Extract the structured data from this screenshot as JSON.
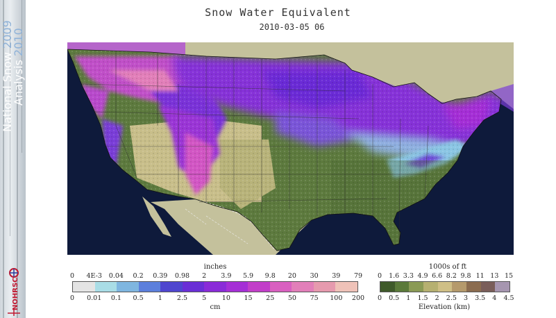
{
  "banner": {
    "line1": "National Snow",
    "year1": "2009",
    "line2": "Analysis",
    "year2": "2010",
    "logo_text": "NOHRSC"
  },
  "title": "Snow Water Equivalent",
  "datetime": "2010-03-05 06",
  "swe_legend": {
    "top_unit": "inches",
    "top_ticks": [
      "0",
      "4E-3",
      "0.04",
      "0.2",
      "0.39",
      "0.98",
      "2",
      "3.9",
      "5.9",
      "9.8",
      "20",
      "30",
      "39",
      "79"
    ],
    "bottom_ticks": [
      "0",
      "0.01",
      "0.1",
      "0.5",
      "1",
      "2.5",
      "5",
      "10",
      "15",
      "25",
      "50",
      "75",
      "100",
      "200"
    ],
    "bottom_unit": "cm",
    "colors": [
      "#e4e4e4",
      "#a9dde6",
      "#7fb6e0",
      "#5c7fdc",
      "#4f46cf",
      "#6a2fd6",
      "#8a2bd8",
      "#a52fd6",
      "#c23ec9",
      "#d960c0",
      "#e27fb9",
      "#e69aae",
      "#efc2b8"
    ]
  },
  "elev_legend": {
    "top_unit": "1000s of ft",
    "top_ticks": [
      "0",
      "1.6",
      "3.3",
      "4.9",
      "6.6",
      "8.2",
      "9.8",
      "11",
      "13",
      "15"
    ],
    "bottom_ticks": [
      "0",
      "0.5",
      "1",
      "1.5",
      "2",
      "2.5",
      "3",
      "3.5",
      "4",
      "4.5"
    ],
    "bottom_label": "Elevation (km)",
    "colors": [
      "#3f5a2a",
      "#5b7a3a",
      "#8a9a55",
      "#b6b071",
      "#cfbf86",
      "#b59a6c",
      "#8b6c4f",
      "#7a5e5a",
      "#a696b0"
    ]
  }
}
